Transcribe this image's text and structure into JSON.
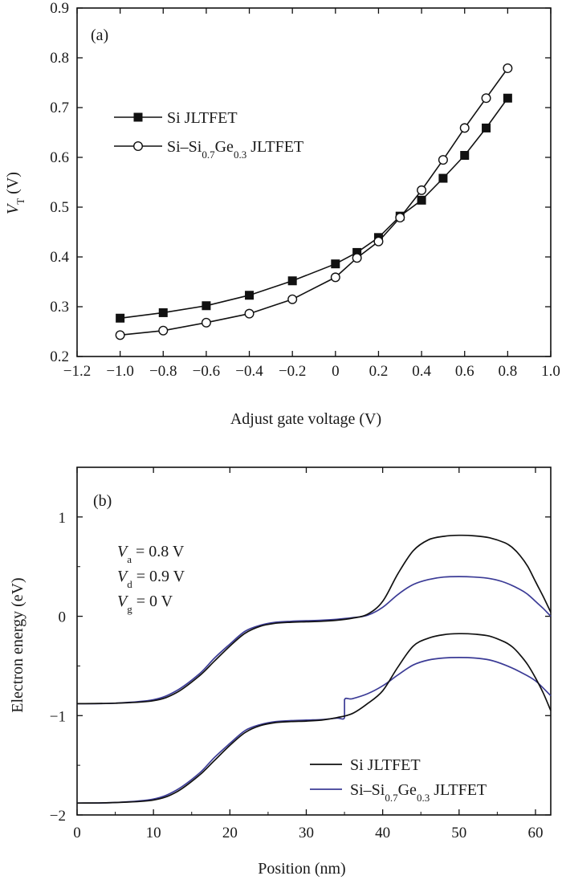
{
  "chart_data": [
    {
      "type": "line",
      "panel_label": "(a)",
      "xlabel": "Adjust gate voltage (V)",
      "ylabel": {
        "main": "V",
        "sub": "T",
        "unit": " (V)"
      },
      "xlim": [
        -1.2,
        1.0
      ],
      "ylim": [
        0.2,
        0.9
      ],
      "xticks": [
        -1.2,
        -1.0,
        -0.8,
        -0.6,
        -0.4,
        -0.2,
        0,
        0.2,
        0.4,
        0.6,
        0.8,
        1.0
      ],
      "xtick_labels": [
        "−1.2",
        "−1.0",
        "−0.8",
        "−0.6",
        "−0.4",
        "−0.2",
        "0",
        "0.2",
        "0.4",
        "0.6",
        "0.8",
        "1.0"
      ],
      "yticks": [
        0.2,
        0.3,
        0.4,
        0.5,
        0.6,
        0.7,
        0.8,
        0.9
      ],
      "ytick_labels": [
        "0.2",
        "0.3",
        "0.4",
        "0.5",
        "0.6",
        "0.7",
        "0.8",
        "0.9"
      ],
      "legend_position": "upper-left",
      "series": [
        {
          "name": "Si JLTFET",
          "legend_parts": [
            {
              "t": "Si JLTFET",
              "sub": false
            }
          ],
          "marker": "filled-square",
          "color": "#111111",
          "x": [
            -1.0,
            -0.8,
            -0.6,
            -0.4,
            -0.2,
            0,
            0.1,
            0.2,
            0.3,
            0.4,
            0.5,
            0.6,
            0.7,
            0.8
          ],
          "y": [
            0.277,
            0.288,
            0.302,
            0.323,
            0.352,
            0.386,
            0.409,
            0.439,
            0.482,
            0.514,
            0.558,
            0.604,
            0.659,
            0.719
          ]
        },
        {
          "name": "Si–Si0.7Ge0.3 JLTFET",
          "legend_parts": [
            {
              "t": "Si–Si",
              "sub": false
            },
            {
              "t": "0.7",
              "sub": true
            },
            {
              "t": "Ge",
              "sub": false
            },
            {
              "t": "0.3",
              "sub": true
            },
            {
              "t": " JLTFET",
              "sub": false
            }
          ],
          "marker": "open-circle",
          "color": "#111111",
          "x": [
            -1.0,
            -0.8,
            -0.6,
            -0.4,
            -0.2,
            0,
            0.1,
            0.2,
            0.3,
            0.4,
            0.5,
            0.6,
            0.7,
            0.8
          ],
          "y": [
            0.243,
            0.252,
            0.268,
            0.286,
            0.315,
            0.359,
            0.398,
            0.431,
            0.479,
            0.534,
            0.595,
            0.659,
            0.719,
            0.779
          ]
        }
      ]
    },
    {
      "type": "line",
      "panel_label": "(b)",
      "xlabel": "Position (nm)",
      "ylabel": "Electron energy (eV)",
      "xlim": [
        0,
        62
      ],
      "ylim": [
        -2,
        1.5
      ],
      "xticks": [
        0,
        10,
        20,
        30,
        40,
        50,
        60
      ],
      "xtick_labels": [
        "0",
        "10",
        "20",
        "30",
        "40",
        "50",
        "60"
      ],
      "yticks": [
        -2,
        -1,
        0,
        1
      ],
      "ytick_labels": [
        "−2",
        "−1",
        "0",
        "1"
      ],
      "annotations": [
        {
          "main": "V",
          "sub": "a",
          "rest": " = 0.8 V"
        },
        {
          "main": "V",
          "sub": "d",
          "rest": " = 0.9 V"
        },
        {
          "main": "V",
          "sub": "g",
          "rest": " = 0 V"
        }
      ],
      "legend_position": "lower-right",
      "series": [
        {
          "name": "Si JLTFET",
          "legend_parts": [
            {
              "t": "Si JLTFET",
              "sub": false
            }
          ],
          "color": "#111111",
          "curves": [
            {
              "band": "conduction",
              "x": [
                0,
                5,
                10,
                13,
                16,
                18,
                20,
                22,
                24,
                26,
                28,
                30,
                32,
                34,
                36,
                38,
                40,
                42,
                44,
                46,
                48,
                50,
                52,
                54,
                56,
                57,
                58,
                59,
                60,
                61,
                62
              ],
              "y": [
                -0.88,
                -0.875,
                -0.85,
                -0.77,
                -0.6,
                -0.45,
                -0.3,
                -0.17,
                -0.1,
                -0.07,
                -0.06,
                -0.055,
                -0.05,
                -0.04,
                -0.02,
                0.02,
                0.15,
                0.43,
                0.66,
                0.77,
                0.805,
                0.815,
                0.81,
                0.79,
                0.74,
                0.69,
                0.61,
                0.5,
                0.35,
                0.2,
                0.04
              ]
            },
            {
              "band": "valence",
              "x": [
                0,
                5,
                10,
                13,
                16,
                18,
                20,
                22,
                24,
                26,
                28,
                30,
                32,
                34,
                36,
                38,
                40,
                42,
                44,
                46,
                48,
                50,
                52,
                54,
                56,
                57,
                58,
                59,
                60,
                61,
                62
              ],
              "y": [
                -1.88,
                -1.875,
                -1.85,
                -1.77,
                -1.6,
                -1.45,
                -1.3,
                -1.17,
                -1.1,
                -1.07,
                -1.06,
                -1.055,
                -1.045,
                -1.02,
                -0.98,
                -0.88,
                -0.75,
                -0.51,
                -0.3,
                -0.22,
                -0.185,
                -0.175,
                -0.18,
                -0.2,
                -0.26,
                -0.31,
                -0.39,
                -0.49,
                -0.62,
                -0.77,
                -0.95
              ]
            }
          ]
        },
        {
          "name": "Si–Si0.7Ge0.3 JLTFET",
          "legend_parts": [
            {
              "t": "Si–Si",
              "sub": false
            },
            {
              "t": "0.7",
              "sub": true
            },
            {
              "t": "Ge",
              "sub": false
            },
            {
              "t": "0.3",
              "sub": true
            },
            {
              "t": " JLTFET",
              "sub": false
            }
          ],
          "color": "#3b3b96",
          "curves": [
            {
              "band": "conduction",
              "x": [
                0,
                5,
                10,
                13,
                16,
                18,
                20,
                22,
                24,
                26,
                28,
                30,
                32,
                34,
                36,
                38,
                40,
                42,
                44,
                46,
                48,
                50,
                52,
                54,
                56,
                58,
                59,
                60,
                61,
                62
              ],
              "y": [
                -0.88,
                -0.875,
                -0.84,
                -0.75,
                -0.58,
                -0.42,
                -0.28,
                -0.15,
                -0.09,
                -0.06,
                -0.05,
                -0.045,
                -0.04,
                -0.03,
                -0.015,
                0.01,
                0.09,
                0.22,
                0.32,
                0.37,
                0.395,
                0.4,
                0.395,
                0.38,
                0.34,
                0.27,
                0.22,
                0.15,
                0.08,
                0.0
              ]
            },
            {
              "band": "valence",
              "x": [
                0,
                5,
                10,
                13,
                16,
                18,
                20,
                22,
                24,
                26,
                28,
                30,
                32,
                34,
                35,
                35,
                36,
                38,
                40,
                42,
                44,
                46,
                48,
                50,
                52,
                54,
                56,
                58,
                60,
                62
              ],
              "y": [
                -1.88,
                -1.875,
                -1.84,
                -1.75,
                -1.58,
                -1.42,
                -1.28,
                -1.15,
                -1.09,
                -1.06,
                -1.05,
                -1.045,
                -1.04,
                -1.025,
                -1.02,
                -0.84,
                -0.83,
                -0.78,
                -0.7,
                -0.59,
                -0.49,
                -0.44,
                -0.42,
                -0.415,
                -0.42,
                -0.44,
                -0.49,
                -0.56,
                -0.65,
                -0.8
              ]
            }
          ]
        }
      ]
    }
  ]
}
